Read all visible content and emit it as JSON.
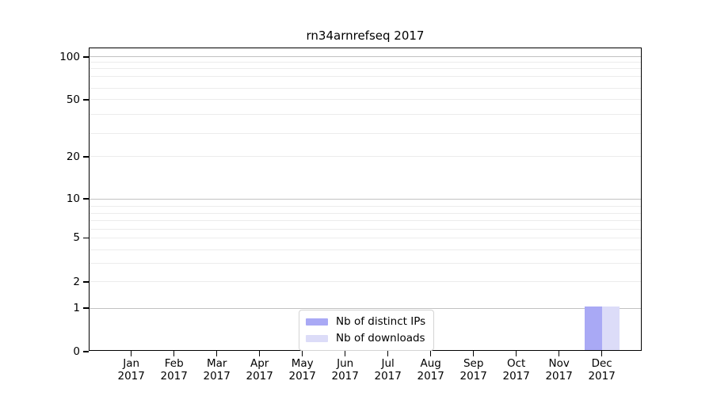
{
  "title": "rn34arnrefseq 2017",
  "chart_data": {
    "type": "bar",
    "title": "rn34arnrefseq 2017",
    "x_axis": {
      "months": [
        "Jan",
        "Feb",
        "Mar",
        "Apr",
        "May",
        "Jun",
        "Jul",
        "Aug",
        "Sep",
        "Oct",
        "Nov",
        "Dec"
      ],
      "year": "2017",
      "first_center_frac": 0.0755,
      "step_frac": 0.07736
    },
    "y_axis": {
      "ticks": [
        0,
        1,
        2,
        5,
        10,
        20,
        50,
        100
      ],
      "major_gridlines": [
        1,
        10,
        100
      ],
      "minor_gridlines": [
        2,
        3,
        4,
        5,
        6,
        7,
        8,
        9,
        20,
        30,
        40,
        50,
        60,
        70,
        80,
        90
      ],
      "scale": "log-like with linear segment below 1",
      "scale_anchors": [
        [
          0,
          0
        ],
        [
          1,
          0.1436
        ],
        [
          2,
          0.2298
        ],
        [
          3,
          0.2906
        ],
        [
          4,
          0.336
        ],
        [
          5,
          0.3752
        ],
        [
          6,
          0.4039
        ],
        [
          7,
          0.4326
        ],
        [
          8,
          0.4561
        ],
        [
          9,
          0.4804
        ],
        [
          10,
          0.5039
        ],
        [
          20,
          0.6423
        ],
        [
          30,
          0.7206
        ],
        [
          40,
          0.7815
        ],
        [
          50,
          0.8303
        ],
        [
          60,
          0.8687
        ],
        [
          70,
          0.9078
        ],
        [
          80,
          0.9329
        ],
        [
          90,
          0.9548
        ],
        [
          100,
          0.9713
        ]
      ]
    },
    "series": [
      {
        "name": "Nb of distinct IPs",
        "color": "#a9a9f5",
        "values": [
          0,
          0,
          0,
          0,
          0,
          0,
          0,
          0,
          0,
          0,
          0,
          1
        ]
      },
      {
        "name": "Nb of downloads",
        "color": "#dcdcf8",
        "values": [
          0,
          0,
          0,
          0,
          0,
          0,
          0,
          0,
          0,
          0,
          0,
          1
        ]
      }
    ],
    "legend": {
      "position": "lower center",
      "items": [
        {
          "label": "Nb of distinct IPs"
        },
        {
          "label": "Nb of downloads"
        }
      ]
    }
  },
  "colors": {
    "grid_major": "#c2c2c2",
    "grid_minor": "#ececec",
    "spine": "#000000",
    "text": "#000000",
    "legend_border": "#d4d4d4",
    "background": "#ffffff"
  }
}
